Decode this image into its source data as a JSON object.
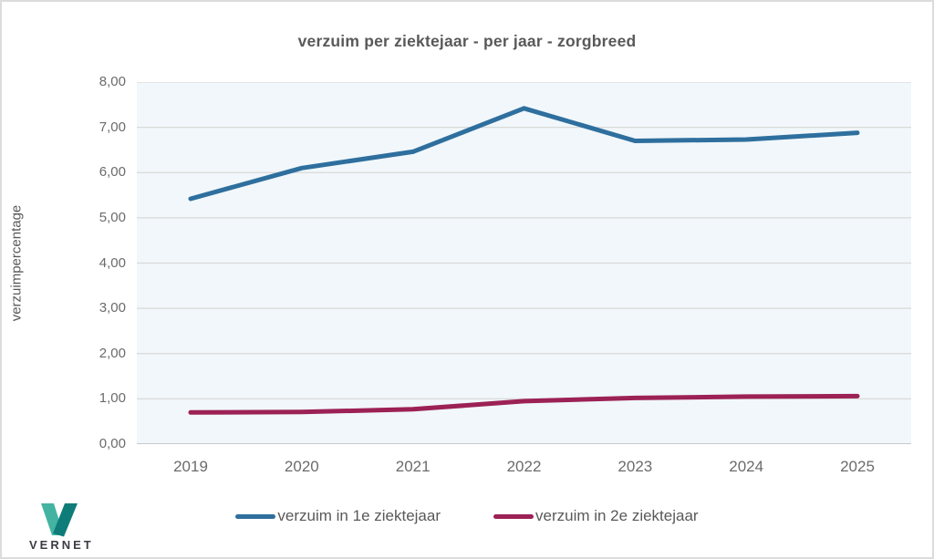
{
  "title": "verzuim per ziektejaar - per jaar - zorgbreed",
  "chart_data": {
    "type": "line",
    "title": "verzuim per ziektejaar - per jaar - zorgbreed",
    "xlabel": "",
    "ylabel": "verzuimpercentage",
    "categories": [
      "2019",
      "2020",
      "2021",
      "2022",
      "2023",
      "2024",
      "2025"
    ],
    "series": [
      {
        "name": "verzuim in 1e ziektejaar",
        "color": "#2e6f9e",
        "values": [
          5.42,
          6.1,
          6.46,
          7.42,
          6.7,
          6.73,
          6.88
        ]
      },
      {
        "name": "verzuim in 2e ziektejaar",
        "color": "#9c2155",
        "values": [
          0.7,
          0.71,
          0.77,
          0.95,
          1.02,
          1.05,
          1.06
        ]
      }
    ],
    "ylim": [
      0,
      8
    ],
    "y_ticks": [
      "0,00",
      "1,00",
      "2,00",
      "3,00",
      "4,00",
      "5,00",
      "6,00",
      "7,00",
      "8,00"
    ],
    "grid": true,
    "legend_position": "bottom"
  },
  "colors": {
    "plot_background": "#f1f7fa",
    "gridline": "#d9d9d9",
    "baseline": "#b9b9b9",
    "text": "#595959",
    "tick_text": "#6b6b6b",
    "series1": "#2e6f9e",
    "series2": "#9c2155"
  },
  "logo": {
    "text": "VERNET",
    "mark_light": "#45b3a2",
    "mark_dark": "#0e7d79"
  }
}
